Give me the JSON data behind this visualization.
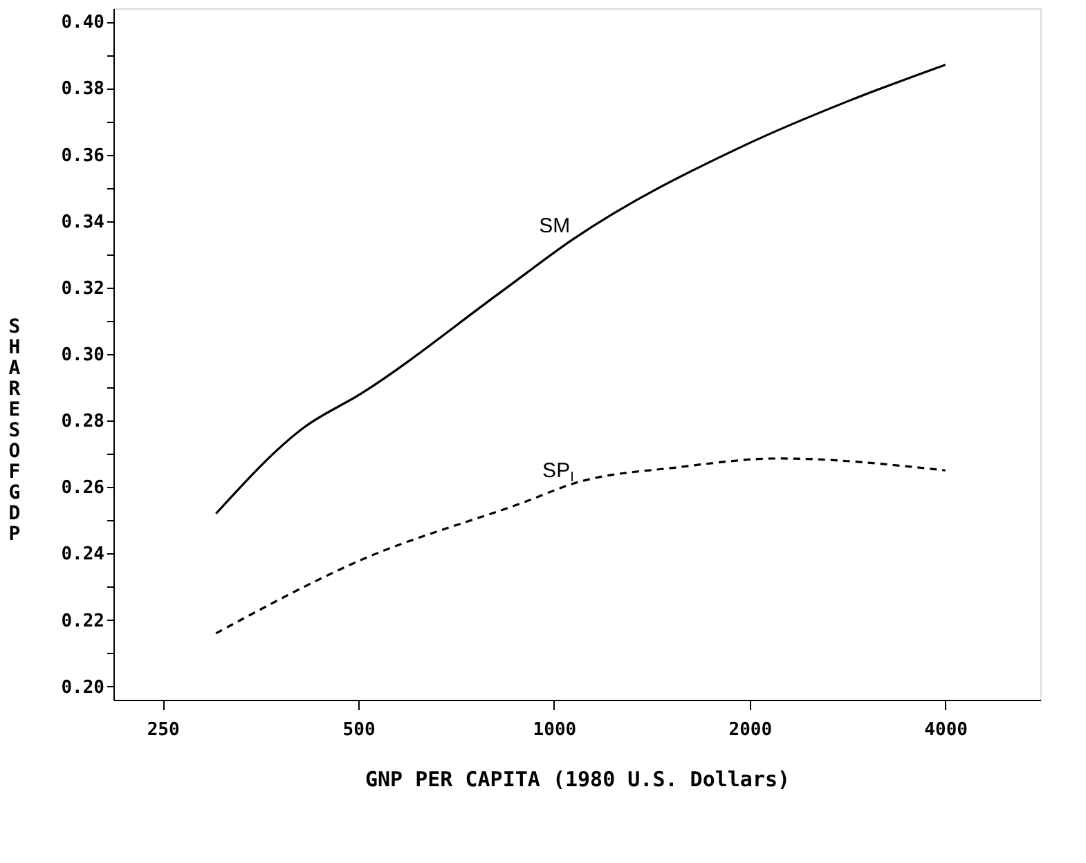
{
  "chart_data": {
    "type": "line",
    "xlabel": "GNP PER CAPITA (1980 U.S. Dollars)",
    "ylabel": "SHARES OF GDP",
    "log": "x",
    "xlim": [
      210,
      5600
    ],
    "xticks": [
      250,
      500,
      1000,
      2000,
      4000
    ],
    "ylim": [
      0.196,
      0.404
    ],
    "yticks": [
      {
        "value": 0.2,
        "label": "0.20"
      },
      {
        "value": 0.21,
        "label": null
      },
      {
        "value": 0.22,
        "label": "0.22"
      },
      {
        "value": 0.23,
        "label": null
      },
      {
        "value": 0.24,
        "label": "0.24"
      },
      {
        "value": 0.25,
        "label": null
      },
      {
        "value": 0.26,
        "label": "0.26"
      },
      {
        "value": 0.27,
        "label": null
      },
      {
        "value": 0.28,
        "label": "0.28"
      },
      {
        "value": 0.29,
        "label": null
      },
      {
        "value": 0.3,
        "label": "0.30"
      },
      {
        "value": 0.31,
        "label": null
      },
      {
        "value": 0.32,
        "label": "0.32"
      },
      {
        "value": 0.33,
        "label": null
      },
      {
        "value": 0.34,
        "label": "0.34"
      },
      {
        "value": 0.35,
        "label": null
      },
      {
        "value": 0.36,
        "label": "0.36"
      },
      {
        "value": 0.37,
        "label": null
      },
      {
        "value": 0.38,
        "label": "0.38"
      },
      {
        "value": 0.39,
        "label": null
      },
      {
        "value": 0.4,
        "label": "0.40"
      }
    ],
    "grid": false,
    "series": [
      {
        "name": "SM",
        "color": "#000000",
        "line_style": "solid",
        "x": [
          302,
          413,
          504,
          833,
          1069,
          1975,
          2828,
          4000
        ],
        "values": [
          0.252,
          0.278,
          0.288,
          0.319,
          0.3345,
          0.363,
          0.376,
          0.387
        ]
      },
      {
        "name": "SP$_{I}$",
        "color": "#000000",
        "line_style": "dashed",
        "x": [
          302,
          504,
          915,
          1069,
          1560,
          2220,
          4000
        ],
        "values": [
          0.216,
          0.238,
          0.256,
          0.261,
          0.266,
          0.2686,
          0.265
        ]
      }
    ]
  }
}
